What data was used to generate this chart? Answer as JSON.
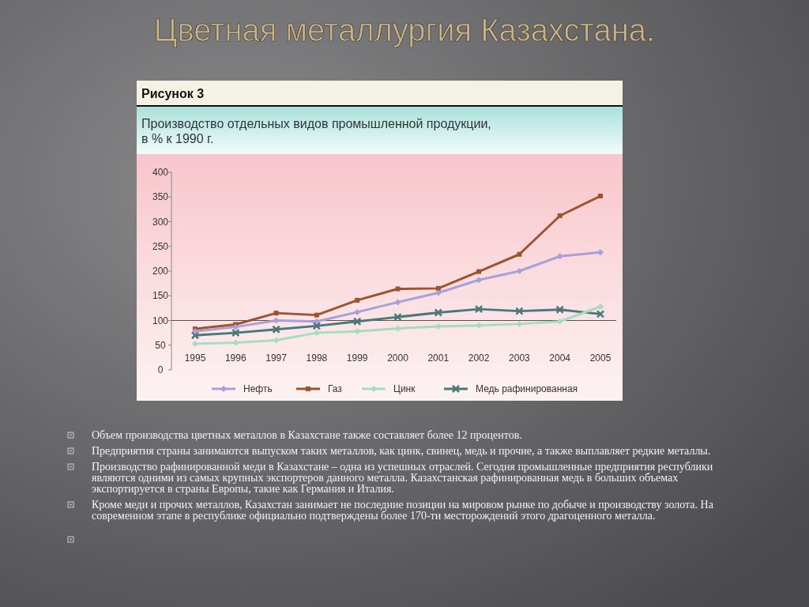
{
  "chart_data": {
    "type": "line",
    "title": "Цветная металлургия Казахстана.",
    "subtitle": "Производство отдельных видов промышленной продукции,\nв % к 1990 г.",
    "annotations": [
      "Рисунок 3",
      "Объем производства цветных металлов в Казахстане также составляет более 12 процентов.",
      "Предприятия страны занимаются выпуском таких металлов, как цинк, свинец, медь и прочие, а также выплавляет редкие металлы.",
      "Производство рафинированной меди в Казахстане – одна из успешных отраслей. Сегодня промышленные предприятия республики являются одними из самых крупных  экспортеров данного металла. Казахстанская рафинированная медь в больших объемах  экспортируется в страны Европы, такие как Германия и Италия.",
      "Кроме меди и прочих металлов, Казахстан занимает не последние позиции на мировом рынке по добыче и производству золота. На современном этапе в республике официально подтверждены более 170-ти месторождений этого драгоценного металла."
    ],
    "categories": [
      "1995",
      "1996",
      "1997",
      "1998",
      "1999",
      "2000",
      "2001",
      "2002",
      "2003",
      "2004",
      "2005"
    ],
    "series": [
      {
        "name": "Нефть",
        "color": "#a9a0d8",
        "marker": "diamond",
        "values": [
          78,
          87,
          100,
          98,
          117,
          137,
          156,
          182,
          200,
          230,
          238
        ]
      },
      {
        "name": "Газ",
        "color": "#a0522d",
        "marker": "square",
        "values": [
          83,
          92,
          115,
          111,
          141,
          164,
          165,
          199,
          234,
          312,
          352
        ]
      },
      {
        "name": "Цинк",
        "color": "#a6dcc0",
        "marker": "diamond",
        "values": [
          53,
          55,
          60,
          75,
          78,
          84,
          88,
          90,
          93,
          98,
          128
        ]
      },
      {
        "name": "Медь рафинированная",
        "color": "#4a7878",
        "marker": "cross",
        "values": [
          70,
          75,
          82,
          89,
          98,
          107,
          116,
          123,
          119,
          122,
          113
        ]
      }
    ],
    "ylim": [
      0,
      400
    ],
    "yticks": [
      0,
      50,
      100,
      150,
      200,
      250,
      300,
      350,
      400
    ],
    "ref_lines": [
      {
        "axis": "y",
        "value": 100
      }
    ],
    "grid": false,
    "legend": "bottom"
  }
}
